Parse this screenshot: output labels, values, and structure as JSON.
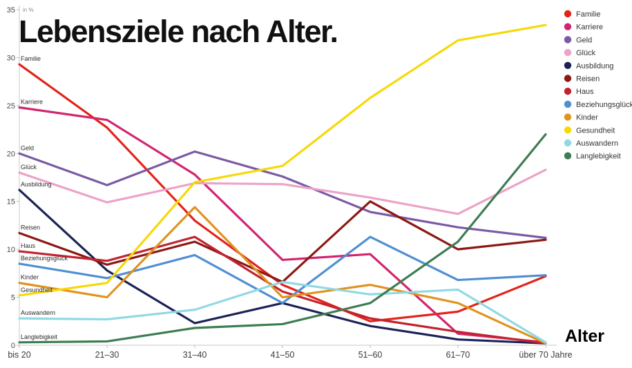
{
  "chart_data": {
    "type": "line",
    "title": "Lebensziele nach Alter.",
    "unit_label": "in %",
    "xlabel": "Alter",
    "ylim": [
      0,
      35
    ],
    "yticks": [
      0,
      5,
      10,
      15,
      20,
      25,
      30,
      35
    ],
    "grid": "off",
    "legend_position": "top-right",
    "categories": [
      "bis 20",
      "21–30",
      "31–40",
      "41–50",
      "51–60",
      "61–70",
      "über 70 Jahre"
    ],
    "series": [
      {
        "name": "Familie",
        "color": "#e2231a",
        "values": [
          29.3,
          22.7,
          13.0,
          6.3,
          2.5,
          3.5,
          7.2
        ]
      },
      {
        "name": "Karriere",
        "color": "#d1256e",
        "values": [
          24.8,
          23.5,
          17.8,
          8.9,
          9.5,
          1.2,
          0.3
        ]
      },
      {
        "name": "Geld",
        "color": "#7a5aa4",
        "values": [
          20.0,
          16.7,
          20.2,
          17.6,
          13.9,
          12.3,
          11.2
        ]
      },
      {
        "name": "Glück",
        "color": "#eba3c6",
        "values": [
          18.0,
          14.9,
          16.9,
          16.8,
          15.4,
          13.7,
          18.3
        ]
      },
      {
        "name": "Ausbildung",
        "color": "#1c2257",
        "values": [
          16.2,
          7.8,
          2.3,
          4.4,
          2.0,
          0.6,
          0.2
        ]
      },
      {
        "name": "Reisen",
        "color": "#8c1913",
        "values": [
          11.7,
          8.4,
          10.8,
          6.6,
          15.0,
          10.0,
          11.0
        ]
      },
      {
        "name": "Haus",
        "color": "#c2232e",
        "values": [
          9.8,
          8.8,
          11.3,
          5.6,
          2.8,
          1.4,
          0.2
        ]
      },
      {
        "name": "Beziehungsglück",
        "color": "#4f8fd3",
        "values": [
          8.5,
          7.0,
          9.4,
          4.4,
          11.3,
          6.8,
          7.3
        ]
      },
      {
        "name": "Kinder",
        "color": "#e0931f",
        "values": [
          6.5,
          5.0,
          14.4,
          5.0,
          6.3,
          4.4,
          0.2
        ]
      },
      {
        "name": "Gesundheit",
        "color": "#f6d908",
        "values": [
          5.2,
          6.5,
          17.0,
          18.7,
          25.8,
          31.8,
          33.4
        ]
      },
      {
        "name": "Auswandern",
        "color": "#90d9e4",
        "values": [
          2.8,
          2.7,
          3.7,
          6.6,
          5.3,
          5.8,
          0.3
        ]
      },
      {
        "name": "Langlebigkeit",
        "color": "#3d7d52",
        "values": [
          0.3,
          0.4,
          1.8,
          2.2,
          4.4,
          10.8,
          22.0
        ]
      }
    ]
  }
}
